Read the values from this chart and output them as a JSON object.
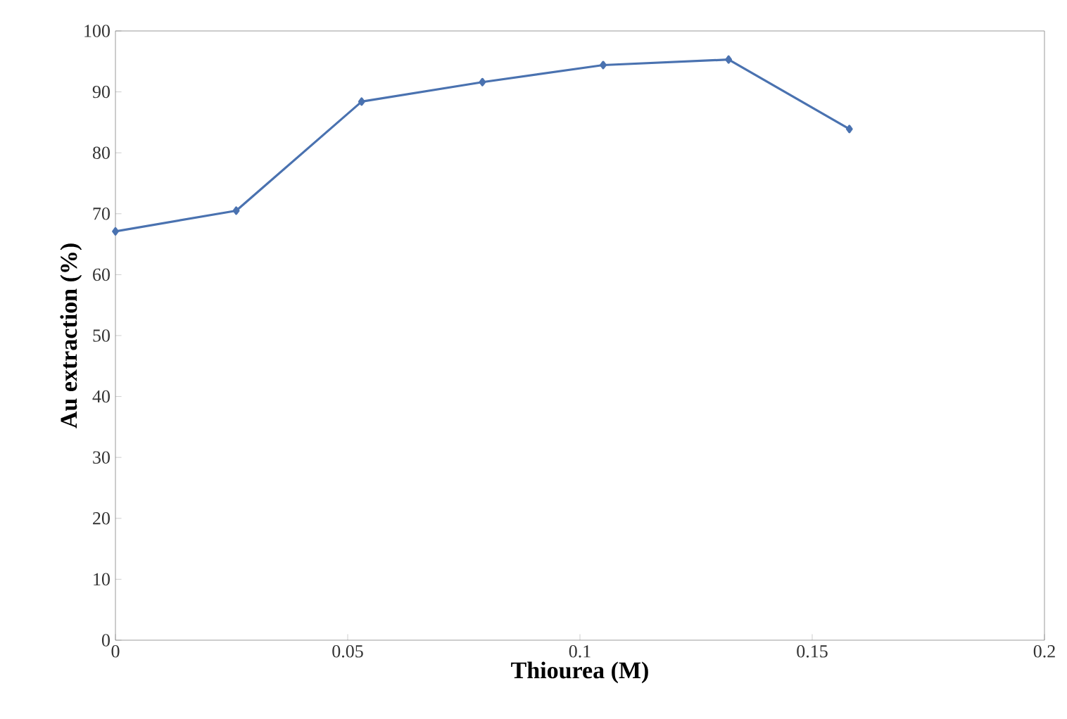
{
  "chart_data": {
    "type": "line",
    "xlabel": "Thiourea  (M)",
    "ylabel": "Au extraction (%)",
    "x": [
      0,
      0.026,
      0.053,
      0.079,
      0.105,
      0.132,
      0.158
    ],
    "series": [
      {
        "color": "#4a72b0",
        "values": [
          67.1,
          70.5,
          88.4,
          91.6,
          94.4,
          95.3,
          83.9
        ]
      }
    ],
    "xlim": [
      0,
      0.2
    ],
    "xticks": [
      0,
      0.05,
      0.1,
      0.15,
      0.2
    ],
    "ylim": [
      0,
      100
    ],
    "yticks": [
      0,
      10,
      20,
      30,
      40,
      50,
      60,
      70,
      80,
      90,
      100
    ],
    "marker": "diamond",
    "grid": false,
    "legend": false
  }
}
